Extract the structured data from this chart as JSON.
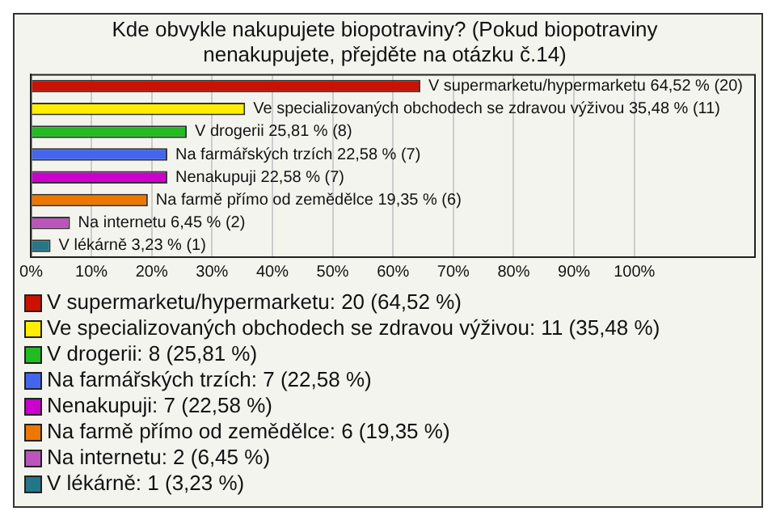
{
  "chart_data": {
    "type": "bar",
    "orientation": "horizontal",
    "title": [
      "Kde obvykle nakupujete biopotraviny? (Pokud biopotraviny",
      "nenakupujete, přejděte na otázku č.14)"
    ],
    "categories": [
      null,
      null,
      null,
      null,
      null,
      null,
      null,
      null
    ],
    "values": [
      64.52,
      35.48,
      25.81,
      22.58,
      22.58,
      19.35,
      6.45,
      3.23
    ],
    "colors": [
      "#cc1100",
      "#ffee00",
      "#22bb22",
      "#4466ee",
      "#cc00cc",
      "#ee7700",
      "#bb55bb",
      "#227788"
    ],
    "value_labels": [
      "V supermarketu/hypermarketu 64,52 % (20)",
      "Ve specializovaných obchodech se zdravou výživou 35,48 % (11)",
      "V drogerii 25,81 % (8)",
      "Na farmářských trzích 22,58 % (7)",
      "Nenakupuji 22,58 % (7)",
      "Na farmě přímo od zemědělce 19,35 % (6)",
      "Na internetu 6,45 % (2)",
      "V lékárně 3,23 % (1)"
    ],
    "annotations": [
      "V supermarketu/hypermarketu: 20 (64,52 %)",
      "Ve specializovaných obchodech se zdravou výživou: 11 (35,48 %)",
      "V drogerii: 8 (25,81 %)",
      "Na farmářských trzích: 7 (22,58 %)",
      "Nenakupuji: 7 (22,58 %)",
      "Na farmě přímo od zemědělce: 6 (19,35 %)",
      "Na internetu: 2 (6,45 %)",
      "V lékárně: 1 (3,23 %)"
    ],
    "xlim": [
      0,
      120
    ],
    "xticks": [
      {
        "value": 0,
        "label": "0%"
      },
      {
        "value": 10,
        "label": "10%"
      },
      {
        "value": 20,
        "label": "20%"
      },
      {
        "value": 30,
        "label": "30%"
      },
      {
        "value": 40,
        "label": "40%"
      },
      {
        "value": 50,
        "label": "50%"
      },
      {
        "value": 60,
        "label": "60%"
      },
      {
        "value": 70,
        "label": "70%"
      },
      {
        "value": 80,
        "label": "80%"
      },
      {
        "value": 90,
        "label": "90%"
      },
      {
        "value": 100,
        "label": "100%"
      }
    ],
    "grid": "x",
    "tick_labels": "x"
  }
}
